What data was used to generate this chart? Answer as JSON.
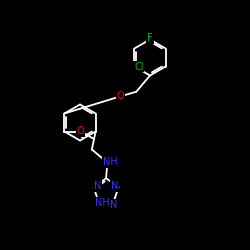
{
  "background": "#000000",
  "bond_color": "#ffffff",
  "atom_colors": {
    "F": "#00bb00",
    "Cl": "#00bb00",
    "O": "#ff0000",
    "N": "#3333ff",
    "C": "#ffffff"
  },
  "figsize": [
    2.5,
    2.5
  ],
  "dpi": 100,
  "xlim": [
    0,
    10
  ],
  "ylim": [
    0,
    10
  ],
  "ring_r": 0.72,
  "lw": 1.3,
  "fontsize": 6.5
}
